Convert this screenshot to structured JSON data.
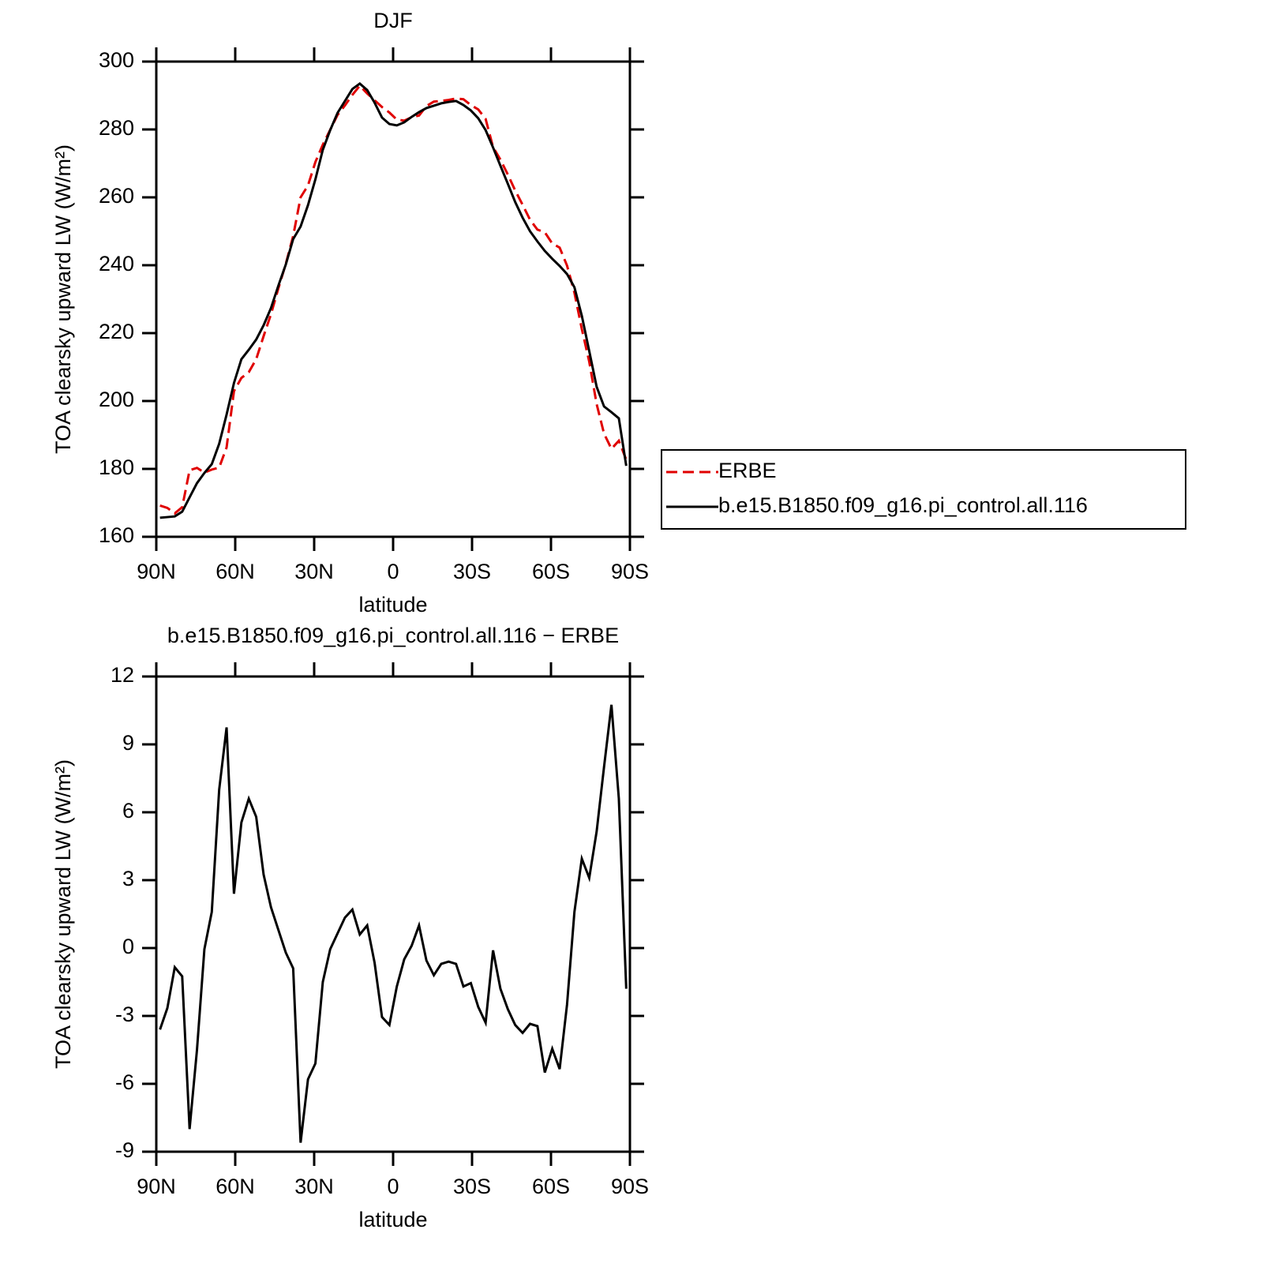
{
  "chart_data": [
    {
      "type": "line",
      "title": "DJF",
      "x_label": "latitude",
      "y_label": "TOA clearsky upward LW (W/m²)",
      "x": [
        88.6,
        85.79,
        82.98,
        80.16,
        77.35,
        74.54,
        71.72,
        68.91,
        66.1,
        63.29,
        60.48,
        57.66,
        54.85,
        52.04,
        49.22,
        46.41,
        43.6,
        40.79,
        37.98,
        35.16,
        32.35,
        29.54,
        26.72,
        23.91,
        21.1,
        18.29,
        15.48,
        12.66,
        9.85,
        7.04,
        4.22,
        1.41,
        -1.41,
        -4.22,
        -7.04,
        -9.85,
        -12.66,
        -15.48,
        -18.29,
        -21.1,
        -23.91,
        -26.72,
        -29.54,
        -32.35,
        -35.16,
        -37.98,
        -40.79,
        -43.6,
        -46.41,
        -49.22,
        -52.04,
        -54.85,
        -57.66,
        -60.48,
        -63.29,
        -66.1,
        -68.91,
        -71.72,
        -74.54,
        -77.35,
        -80.16,
        -82.98,
        -85.79,
        -88.6
      ],
      "series": [
        {
          "name": "ERBE",
          "color": "#e00000",
          "dashed": true,
          "values": [
            169.2,
            168.5,
            166.9,
            168.7,
            179.6,
            180.3,
            178.9,
            179.8,
            180.4,
            186.3,
            202.9,
            206.8,
            208.5,
            212.3,
            219.1,
            225.6,
            233.2,
            240.4,
            248.6,
            260.0,
            263.5,
            270.4,
            275.5,
            279.9,
            284.3,
            287.1,
            290.2,
            292.9,
            290.6,
            288.6,
            286.6,
            285.0,
            282.9,
            282.6,
            283.6,
            284.1,
            286.9,
            288.2,
            288.4,
            288.7,
            289.1,
            288.9,
            287.2,
            285.9,
            283.1,
            274.8,
            271.1,
            266.7,
            262.0,
            257.8,
            253.4,
            250.5,
            249.7,
            246.4,
            245.2,
            239.9,
            231.9,
            221.2,
            211.6,
            199.1,
            190.4,
            185.9,
            188.3,
            182.7
          ]
        },
        {
          "name": "b.e15.B1850.f09_g16.pi_control.all.116",
          "color": "#000000",
          "dashed": false,
          "values": [
            165.6,
            165.8,
            166.0,
            167.4,
            171.6,
            175.8,
            178.8,
            181.4,
            187.4,
            196.0,
            205.3,
            212.3,
            215.1,
            218.1,
            222.3,
            227.4,
            234.0,
            240.2,
            247.7,
            251.4,
            257.7,
            265.3,
            274.0,
            279.8,
            284.9,
            288.4,
            291.9,
            293.5,
            291.6,
            287.9,
            283.5,
            281.6,
            281.2,
            282.1,
            283.7,
            285.1,
            286.3,
            287.0,
            287.7,
            288.1,
            288.4,
            287.2,
            285.6,
            283.3,
            279.8,
            274.7,
            269.3,
            264.0,
            258.6,
            254.0,
            250.0,
            247.0,
            244.2,
            241.9,
            239.8,
            237.4,
            233.5,
            225.1,
            214.7,
            204.2,
            198.4,
            196.7,
            194.9,
            180.9
          ]
        }
      ],
      "xlim": [
        90,
        -90
      ],
      "xticks": [
        {
          "value": 90,
          "label": "90N"
        },
        {
          "value": 60,
          "label": "60N"
        },
        {
          "value": 30,
          "label": "30N"
        },
        0,
        {
          "value": -30,
          "label": "30S"
        },
        {
          "value": -60,
          "label": "60S"
        },
        {
          "value": -90,
          "label": "90S"
        }
      ],
      "ylim": [
        160,
        300
      ],
      "yticks": [
        160,
        180,
        200,
        220,
        240,
        260,
        280,
        300
      ],
      "legend": "outside-right"
    },
    {
      "type": "line",
      "title": "b.e15.B1850.f09_g16.pi_control.all.116 − ERBE",
      "x_label": "latitude",
      "y_label": "TOA clearsky upward LW (W/m²)",
      "x": [
        88.6,
        85.79,
        82.98,
        80.16,
        77.35,
        74.54,
        71.72,
        68.91,
        66.1,
        63.29,
        60.48,
        57.66,
        54.85,
        52.04,
        49.22,
        46.41,
        43.6,
        40.79,
        37.98,
        35.16,
        32.35,
        29.54,
        26.72,
        23.91,
        21.1,
        18.29,
        15.48,
        12.66,
        9.85,
        7.04,
        4.22,
        1.41,
        -1.41,
        -4.22,
        -7.04,
        -9.85,
        -12.66,
        -15.48,
        -18.29,
        -21.1,
        -23.91,
        -26.72,
        -29.54,
        -32.35,
        -35.16,
        -37.98,
        -40.79,
        -43.6,
        -46.41,
        -49.22,
        -52.04,
        -54.85,
        -57.66,
        -60.48,
        -63.29,
        -66.1,
        -68.91,
        -71.72,
        -74.54,
        -77.35,
        -80.16,
        -82.98,
        -85.79,
        -88.6
      ],
      "series": [
        {
          "color": "#000000",
          "dashed": false,
          "values": [
            -3.6,
            -2.65,
            -0.85,
            -1.25,
            -8.0,
            -4.5,
            -0.05,
            1.6,
            7.0,
            9.75,
            2.4,
            5.55,
            6.6,
            5.8,
            3.25,
            1.8,
            0.8,
            -0.2,
            -0.9,
            -8.6,
            -5.8,
            -5.1,
            -1.5,
            -0.05,
            0.65,
            1.35,
            1.7,
            0.6,
            1.0,
            -0.65,
            -3.05,
            -3.4,
            -1.7,
            -0.5,
            0.1,
            1.0,
            -0.55,
            -1.2,
            -0.7,
            -0.6,
            -0.7,
            -1.7,
            -1.55,
            -2.6,
            -3.3,
            -0.1,
            -1.8,
            -2.7,
            -3.4,
            -3.75,
            -3.35,
            -3.45,
            -5.5,
            -4.45,
            -5.35,
            -2.5,
            1.6,
            3.95,
            3.1,
            5.15,
            8.0,
            10.75,
            6.6,
            -1.8
          ]
        }
      ],
      "xlim": [
        90,
        -90
      ],
      "xticks": [
        {
          "value": 90,
          "label": "90N"
        },
        {
          "value": 60,
          "label": "60N"
        },
        {
          "value": 30,
          "label": "30N"
        },
        0,
        {
          "value": -30,
          "label": "30S"
        },
        {
          "value": -60,
          "label": "60S"
        },
        {
          "value": -90,
          "label": "90S"
        }
      ],
      "ylim": [
        -9,
        12
      ],
      "yticks": [
        -9,
        -6,
        -3,
        0,
        3,
        6,
        9,
        12
      ]
    }
  ]
}
